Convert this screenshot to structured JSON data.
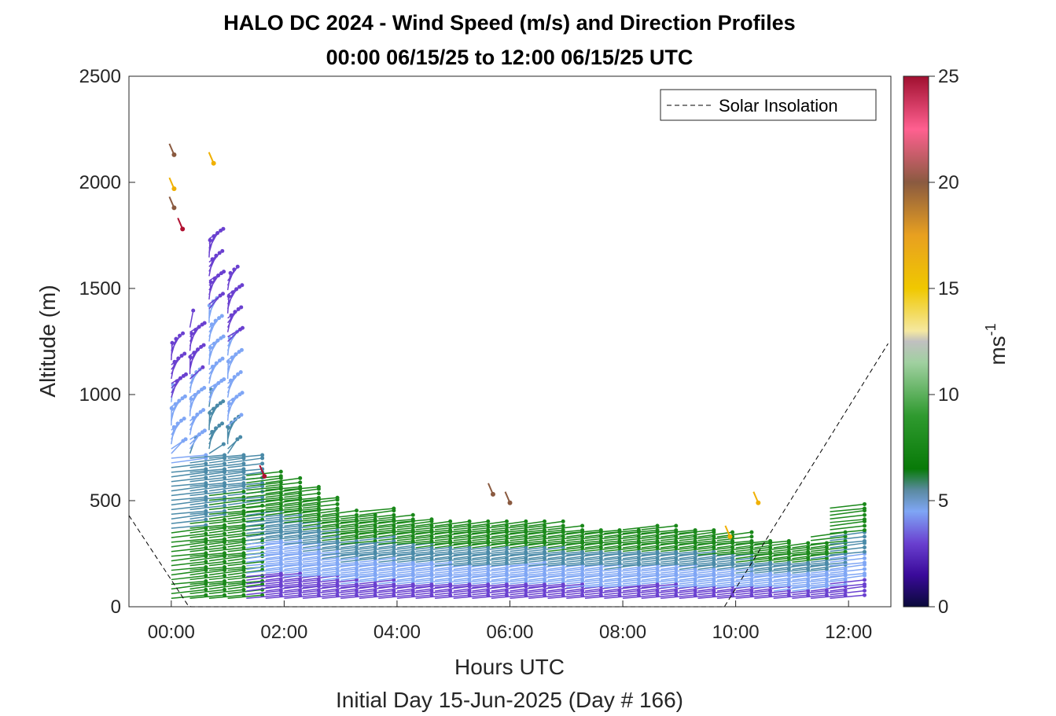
{
  "chart_data": {
    "type": "wind_barb_profile",
    "title_line1": "HALO DC 2024 - Wind Speed (m/s) and Direction Profiles",
    "title_line2": "00:00 06/15/25 to 12:00 06/15/25  UTC",
    "xlabel": "Hours UTC",
    "xlabel2": "Initial Day 15-Jun-2025 (Day # 166)",
    "ylabel": "Altitude (m)",
    "x_ticks": [
      0,
      2,
      4,
      6,
      8,
      10,
      12
    ],
    "x_tick_labels": [
      "00:00",
      "02:00",
      "04:00",
      "06:00",
      "08:00",
      "10:00",
      "12:00"
    ],
    "xlim": [
      -0.75,
      12.75
    ],
    "y_ticks": [
      0,
      500,
      1000,
      1500,
      2000,
      2500
    ],
    "y_tick_labels": [
      "0",
      "500",
      "1000",
      "1500",
      "2000",
      "2500"
    ],
    "ylim": [
      0,
      2500
    ],
    "colorbar": {
      "label": "ms",
      "label_exp": "-1",
      "range": [
        0,
        25
      ],
      "ticks": [
        0,
        5,
        10,
        15,
        20,
        25
      ],
      "tick_labels": [
        "0",
        "5",
        "10",
        "15",
        "20",
        "25"
      ],
      "colors": [
        "#0a0a4a",
        "#3d10a0",
        "#6a40d0",
        "#7fa6f5",
        "#5a8aa0",
        "#0a7a0a",
        "#2f9a2f",
        "#9fd09f",
        "#c8c8c8",
        "#f5e88a",
        "#f0c800",
        "#e8a020",
        "#b07a40",
        "#8a5a40",
        "#e0507a",
        "#ff6090",
        "#b01030"
      ]
    },
    "legend": {
      "entries": [
        "Solar Insolation"
      ],
      "position": "top-right"
    },
    "solar_insolation": {
      "x": [
        -0.75,
        0.3,
        0.35,
        9.8,
        12.7
      ],
      "y": [
        430,
        5,
        0,
        0,
        1240
      ]
    },
    "profiles": {
      "times": [
        0.0,
        0.33,
        0.67,
        1.0,
        1.33,
        1.67,
        2.0,
        2.33,
        2.67,
        3.0,
        3.33,
        3.67,
        4.0,
        4.33,
        4.67,
        5.0,
        5.33,
        5.67,
        6.0,
        6.33,
        6.67,
        7.0,
        7.33,
        7.67,
        8.0,
        8.33,
        8.67,
        9.0,
        9.33,
        9.67,
        10.0,
        10.33,
        10.67,
        11.0,
        11.33,
        11.67
      ],
      "tops": [
        1230,
        1320,
        1750,
        1540,
        620,
        600,
        560,
        510,
        440,
        420,
        450,
        420,
        400,
        390,
        380,
        380,
        380,
        380,
        390,
        380,
        370,
        360,
        360,
        350,
        370,
        370,
        360,
        350,
        340,
        340,
        300,
        300,
        290,
        290,
        330,
        480
      ],
      "ranges": [
        [
          0,
          2500
        ],
        [
          0,
          2500
        ],
        [
          0,
          2500
        ],
        [
          0,
          2500
        ]
      ],
      "outliers": [
        {
          "t": 0.05,
          "alt": 2130,
          "speed": 21
        },
        {
          "t": 0.05,
          "alt": 1970,
          "speed": 15
        },
        {
          "t": 0.05,
          "alt": 1880,
          "speed": 20
        },
        {
          "t": 0.2,
          "alt": 1780,
          "speed": 24
        },
        {
          "t": 0.75,
          "alt": 2090,
          "speed": 15
        },
        {
          "t": 1.65,
          "alt": 615,
          "speed": 24
        },
        {
          "t": 5.7,
          "alt": 530,
          "speed": 21
        },
        {
          "t": 6.0,
          "alt": 490,
          "speed": 21
        },
        {
          "t": 10.4,
          "alt": 490,
          "speed": 16
        },
        {
          "t": 9.9,
          "alt": 330,
          "speed": 15
        }
      ]
    }
  }
}
